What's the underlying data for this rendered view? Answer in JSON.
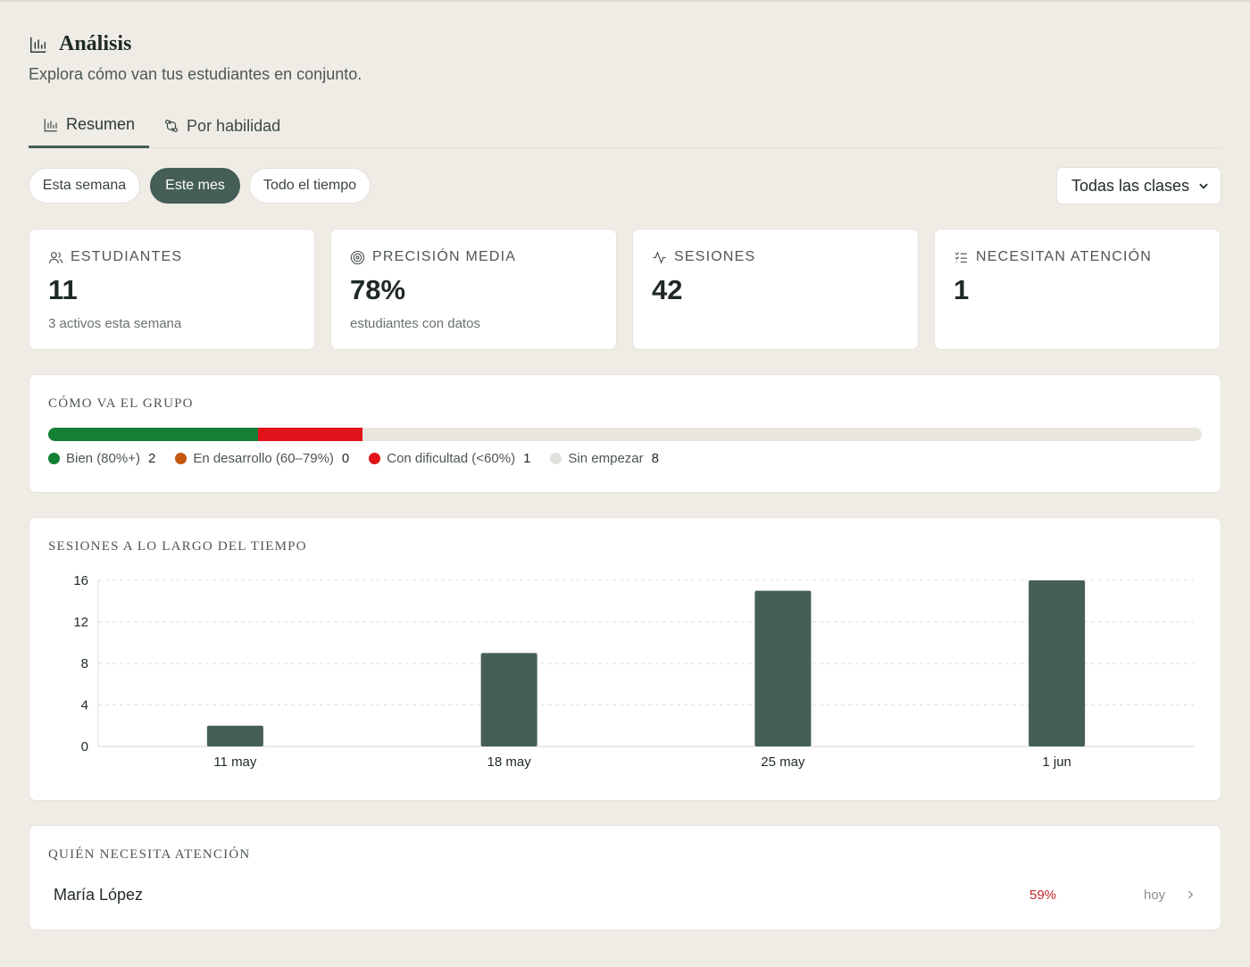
{
  "header": {
    "title": "Análisis",
    "subtitle": "Explora cómo van tus estudiantes en conjunto."
  },
  "tabs": [
    {
      "label": "Resumen",
      "icon": "bar-chart-icon",
      "active": true
    },
    {
      "label": "Por habilidad",
      "icon": "git-compare-icon",
      "active": false
    }
  ],
  "filters": {
    "ranges": [
      {
        "label": "Esta semana",
        "active": false
      },
      {
        "label": "Este mes",
        "active": true
      },
      {
        "label": "Todo el tiempo",
        "active": false
      }
    ],
    "class_select": "Todas las clases"
  },
  "stats": [
    {
      "label": "ESTUDIANTES",
      "icon": "users-icon",
      "value": "11",
      "sub": "3 activos esta semana"
    },
    {
      "label": "PRECISIÓN MEDIA",
      "icon": "target-icon",
      "value": "78%",
      "sub": "estudiantes con datos"
    },
    {
      "label": "SESIONES",
      "icon": "activity-icon",
      "value": "42",
      "sub": ""
    },
    {
      "label": "NECESITAN ATENCIÓN",
      "icon": "list-checks-icon",
      "value": "1",
      "sub": ""
    }
  ],
  "group": {
    "title": "CÓMO VA EL GRUPO",
    "segments": [
      {
        "label": "Bien (80%+)",
        "count": 2,
        "color": "#138036"
      },
      {
        "label": "En desarrollo (60–79%)",
        "count": 0,
        "color": "#c2570e"
      },
      {
        "label": "Con dificultad (<60%)",
        "count": 1,
        "color": "#e0131b"
      },
      {
        "label": "Sin empezar",
        "count": 8,
        "color": "#e9e6df"
      }
    ],
    "total": 11,
    "counts_text": [
      "2",
      "0",
      "1",
      "8"
    ]
  },
  "chart_title": "SESIONES A LO LARGO DEL TIEMPO",
  "chart_data": {
    "type": "bar",
    "categories": [
      "11 may",
      "18 may",
      "25 may",
      "1 jun"
    ],
    "values": [
      2,
      9,
      15,
      16
    ],
    "ylim": [
      0,
      16
    ],
    "yticks": [
      0,
      4,
      8,
      12,
      16
    ],
    "grid": true,
    "color": "#455e58"
  },
  "attention": {
    "title": "QUIÉN NECESITA ATENCIÓN",
    "students": [
      {
        "name": "María López",
        "accuracy": "59%",
        "last_seen": "hoy"
      }
    ]
  }
}
